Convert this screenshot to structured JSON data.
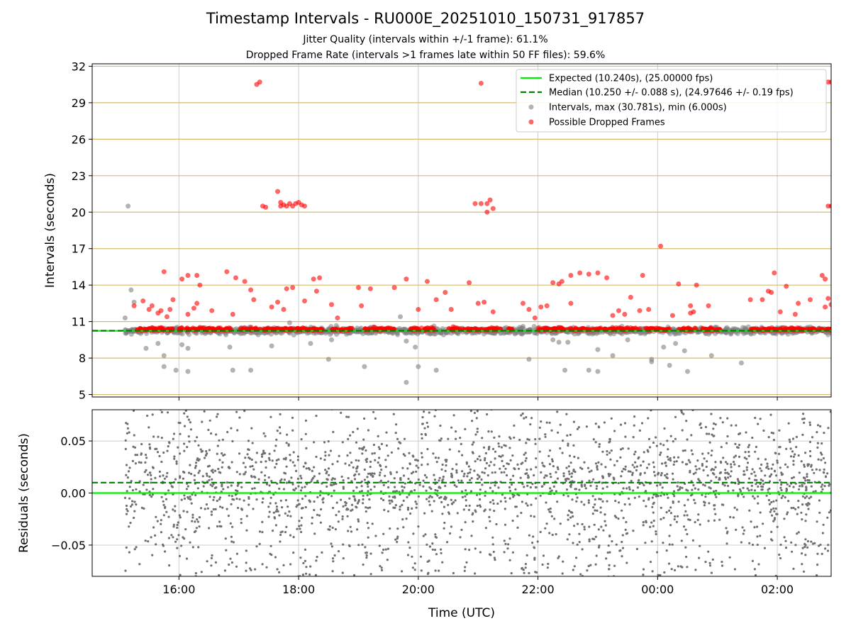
{
  "chart_data": [
    {
      "type": "scatter",
      "panel": "intervals",
      "title": "Timestamp Intervals - RU000E_20251010_150731_917857",
      "subtitle_lines": [
        "Jitter Quality (intervals within +/-1 frame): 61.1%",
        "Dropped Frame Rate (intervals >1 frames late within 50 FF files): 59.6%"
      ],
      "xlabel": "Time (UTC)",
      "ylabel": "Intervals (seconds)",
      "xlim_hours": [
        14.55,
        26.9
      ],
      "ylim": [
        4.8,
        32.2
      ],
      "x_ticks": [
        {
          "hour": 16,
          "label": "16:00"
        },
        {
          "hour": 18,
          "label": "18:00"
        },
        {
          "hour": 20,
          "label": "20:00"
        },
        {
          "hour": 22,
          "label": "22:00"
        },
        {
          "hour": 24,
          "label": "00:00"
        },
        {
          "hour": 26,
          "label": "02:00"
        }
      ],
      "y_ticks": [
        5,
        8,
        11,
        14,
        17,
        20,
        23,
        26,
        29,
        32
      ],
      "grid": true,
      "legend_position": "upper right",
      "legend": [
        "Expected (10.240s), (25.00000 fps)",
        "Median (10.250 +/- 0.088 s), (24.97646 +/- 0.19 fps)",
        "Intervals, max (30.781s), min (6.000s)",
        "Possible Dropped Frames"
      ],
      "expected_interval": 10.24,
      "median_interval": 10.25,
      "colors": {
        "expected": "#00ee00",
        "median": "#008000",
        "intervals": "#808080",
        "dropped": "#ff0000",
        "hgrid": "#d4bb70",
        "vgrid": "#cccccc"
      },
      "outliers_gray": [
        [
          15.1,
          11.3
        ],
        [
          15.15,
          20.5
        ],
        [
          15.2,
          13.6
        ],
        [
          15.25,
          12.6
        ],
        [
          15.45,
          8.8
        ],
        [
          15.65,
          9.2
        ],
        [
          15.75,
          7.3
        ],
        [
          15.75,
          8.2
        ],
        [
          15.95,
          7.0
        ],
        [
          16.05,
          9.1
        ],
        [
          16.15,
          6.9
        ],
        [
          16.15,
          8.8
        ],
        [
          16.65,
          10.1
        ],
        [
          16.85,
          8.9
        ],
        [
          16.9,
          7.0
        ],
        [
          17.2,
          7.0
        ],
        [
          17.55,
          9.0
        ],
        [
          17.85,
          10.9
        ],
        [
          18.2,
          9.2
        ],
        [
          18.5,
          7.9
        ],
        [
          18.55,
          9.5
        ],
        [
          19.1,
          7.3
        ],
        [
          19.7,
          11.4
        ],
        [
          19.8,
          9.4
        ],
        [
          19.8,
          6.0
        ],
        [
          19.95,
          8.9
        ],
        [
          20.0,
          7.3
        ],
        [
          20.3,
          7.0
        ],
        [
          21.85,
          7.9
        ],
        [
          21.75,
          10.6
        ],
        [
          22.25,
          9.5
        ],
        [
          22.35,
          9.3
        ],
        [
          22.45,
          7.0
        ],
        [
          22.5,
          9.3
        ],
        [
          22.85,
          7.0
        ],
        [
          23.0,
          6.9
        ],
        [
          23.0,
          8.7
        ],
        [
          23.25,
          8.2
        ],
        [
          23.5,
          9.5
        ],
        [
          23.9,
          7.7
        ],
        [
          23.9,
          7.9
        ],
        [
          24.1,
          8.9
        ],
        [
          24.2,
          7.4
        ],
        [
          24.3,
          9.2
        ],
        [
          24.5,
          6.9
        ],
        [
          24.45,
          8.6
        ],
        [
          24.9,
          8.2
        ],
        [
          25.4,
          7.6
        ]
      ],
      "dropped_points": [
        [
          15.25,
          12.3
        ],
        [
          15.4,
          12.7
        ],
        [
          15.5,
          12.0
        ],
        [
          15.55,
          12.3
        ],
        [
          15.65,
          11.7
        ],
        [
          15.7,
          11.9
        ],
        [
          15.75,
          15.1
        ],
        [
          15.8,
          11.4
        ],
        [
          15.85,
          12.0
        ],
        [
          15.9,
          12.8
        ],
        [
          16.05,
          14.5
        ],
        [
          16.15,
          14.8
        ],
        [
          16.15,
          11.6
        ],
        [
          16.25,
          12.1
        ],
        [
          16.3,
          12.5
        ],
        [
          16.3,
          14.8
        ],
        [
          16.35,
          14.0
        ],
        [
          16.55,
          11.9
        ],
        [
          16.8,
          15.1
        ],
        [
          16.9,
          11.6
        ],
        [
          16.95,
          14.6
        ],
        [
          17.1,
          14.3
        ],
        [
          17.2,
          13.6
        ],
        [
          17.25,
          12.8
        ],
        [
          17.3,
          30.5
        ],
        [
          17.35,
          30.7
        ],
        [
          17.4,
          20.5
        ],
        [
          17.45,
          20.4
        ],
        [
          17.55,
          12.2
        ],
        [
          17.65,
          12.6
        ],
        [
          17.65,
          21.7
        ],
        [
          17.7,
          20.5
        ],
        [
          17.7,
          20.8
        ],
        [
          17.75,
          20.6
        ],
        [
          17.8,
          20.5
        ],
        [
          17.8,
          13.7
        ],
        [
          17.85,
          20.7
        ],
        [
          17.9,
          20.5
        ],
        [
          17.9,
          13.8
        ],
        [
          17.95,
          20.7
        ],
        [
          18.0,
          20.8
        ],
        [
          18.05,
          20.6
        ],
        [
          18.1,
          20.5
        ],
        [
          17.75,
          12.0
        ],
        [
          18.1,
          12.7
        ],
        [
          18.25,
          14.5
        ],
        [
          18.3,
          13.5
        ],
        [
          18.35,
          14.6
        ],
        [
          18.55,
          12.4
        ],
        [
          18.65,
          11.3
        ],
        [
          19.0,
          13.8
        ],
        [
          19.05,
          12.3
        ],
        [
          19.2,
          13.7
        ],
        [
          19.6,
          13.8
        ],
        [
          19.8,
          14.5
        ],
        [
          20.0,
          12.0
        ],
        [
          20.15,
          14.3
        ],
        [
          20.3,
          12.8
        ],
        [
          20.45,
          13.4
        ],
        [
          20.55,
          12.0
        ],
        [
          20.85,
          14.2
        ],
        [
          20.95,
          20.7
        ],
        [
          21.0,
          12.5
        ],
        [
          21.05,
          30.6
        ],
        [
          21.05,
          20.7
        ],
        [
          21.1,
          12.6
        ],
        [
          21.15,
          20.7
        ],
        [
          21.15,
          20.0
        ],
        [
          21.2,
          21.0
        ],
        [
          21.25,
          20.3
        ],
        [
          21.25,
          11.8
        ],
        [
          21.75,
          12.5
        ],
        [
          21.85,
          12.0
        ],
        [
          21.95,
          11.3
        ],
        [
          22.05,
          12.2
        ],
        [
          22.15,
          12.3
        ],
        [
          22.25,
          14.2
        ],
        [
          22.35,
          14.1
        ],
        [
          22.4,
          14.3
        ],
        [
          22.55,
          14.8
        ],
        [
          22.55,
          12.5
        ],
        [
          22.7,
          15.0
        ],
        [
          22.85,
          14.9
        ],
        [
          23.0,
          15.0
        ],
        [
          23.15,
          14.6
        ],
        [
          23.25,
          11.5
        ],
        [
          23.35,
          11.9
        ],
        [
          23.45,
          11.6
        ],
        [
          23.55,
          13.0
        ],
        [
          23.75,
          14.8
        ],
        [
          23.7,
          11.9
        ],
        [
          23.85,
          12.0
        ],
        [
          24.05,
          17.2
        ],
        [
          24.25,
          11.5
        ],
        [
          24.35,
          14.1
        ],
        [
          24.55,
          12.3
        ],
        [
          24.55,
          11.7
        ],
        [
          24.6,
          11.8
        ],
        [
          24.65,
          14.0
        ],
        [
          24.85,
          12.3
        ],
        [
          25.55,
          12.8
        ],
        [
          25.75,
          12.8
        ],
        [
          25.85,
          13.5
        ],
        [
          25.9,
          13.4
        ],
        [
          25.95,
          15.0
        ],
        [
          26.05,
          11.8
        ],
        [
          26.15,
          13.9
        ],
        [
          26.3,
          11.6
        ],
        [
          26.35,
          12.5
        ],
        [
          26.55,
          12.8
        ],
        [
          26.75,
          14.8
        ],
        [
          26.8,
          12.2
        ],
        [
          26.85,
          12.9
        ],
        [
          26.8,
          14.5
        ],
        [
          26.85,
          30.7
        ],
        [
          26.9,
          30.7
        ],
        [
          26.85,
          20.5
        ],
        [
          26.9,
          20.5
        ],
        [
          26.9,
          12.4
        ]
      ]
    },
    {
      "type": "scatter",
      "panel": "residuals",
      "xlabel": "Time (UTC)",
      "ylabel": "Residuals (seconds)",
      "xlim_hours": [
        14.55,
        26.9
      ],
      "ylim": [
        -0.08,
        0.08
      ],
      "y_ticks": [
        {
          "value": 0.05,
          "label": "0.05"
        },
        {
          "value": 0.0,
          "label": "0.00"
        },
        {
          "value": -0.05,
          "label": "−0.05"
        }
      ],
      "expected_residual": 0.0,
      "median_residual": 0.01,
      "grid": true,
      "note": "Dense cloud of ~2500 gray residual points spanning the full range -0.08 to 0.08, concentrated near 0.00-0.02"
    }
  ]
}
